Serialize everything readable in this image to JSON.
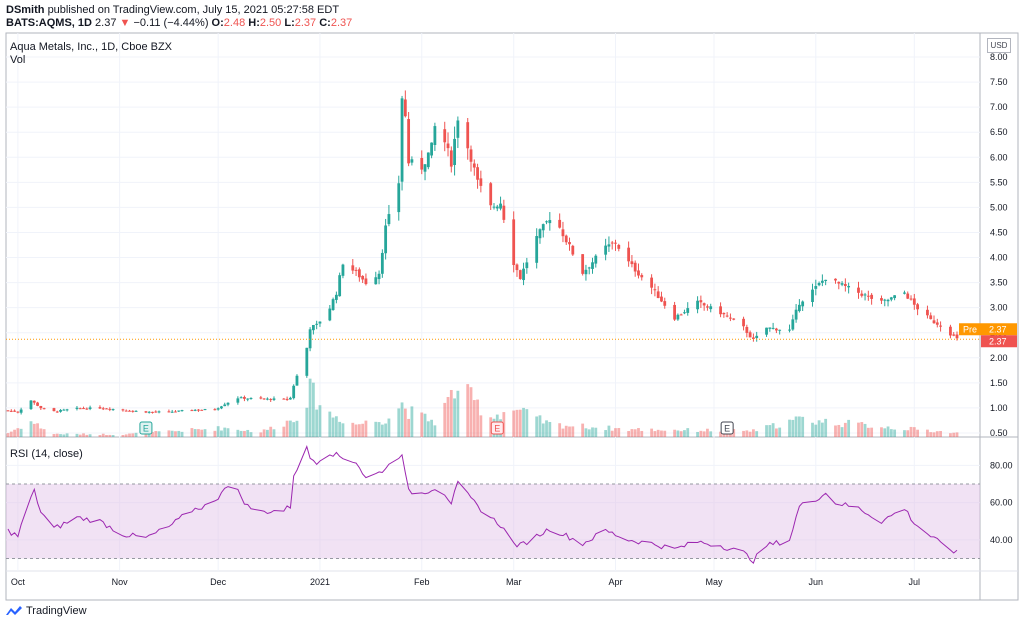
{
  "header": {
    "publisher": "DSmith",
    "published_line": "published on TradingView.com, July 15, 2021 05:27:58 EDT",
    "symbol": "BATS:AQMS, 1D",
    "last": "2.37",
    "change_arrow": "▼",
    "change": "−0.11 (−4.44%)",
    "o_label": "O:",
    "o": "2.48",
    "h_label": "H:",
    "h": "2.50",
    "l_label": "L:",
    "l": "2.37",
    "c_label": "C:",
    "c": "2.37"
  },
  "legend": {
    "title": "Aqua Metals, Inc., 1D, Cboe BZX",
    "vol": "Vol",
    "rsi": "RSI (14, close)"
  },
  "currency": "USD",
  "price_tags": {
    "pre_label": "Pre",
    "pre_value": "2.37",
    "last_value": "2.37"
  },
  "footer": {
    "brand": "TradingView"
  },
  "colors": {
    "up": "#26a69a",
    "down": "#ef5350",
    "rsi_line": "#9c27b0",
    "rsi_band": "#e1bee7",
    "pre_tag": "#ff9800"
  },
  "earnings_markers": [
    "E",
    "E",
    "E"
  ],
  "chart_data": [
    {
      "type": "candlestick",
      "title": "Aqua Metals, Inc., 1D, Cboe BZX",
      "x_ticks": [
        "Oct",
        "Nov",
        "Dec",
        "2021",
        "Feb",
        "Mar",
        "Apr",
        "May",
        "Jun",
        "Jul"
      ],
      "y_ticks": [
        "0.50",
        "1.00",
        "1.50",
        "2.00",
        "2.50",
        "3.00",
        "3.50",
        "4.00",
        "4.50",
        "5.00",
        "5.50",
        "6.00",
        "6.50",
        "7.00",
        "7.50",
        "8.00"
      ],
      "ylim": [
        0.45,
        8.2
      ],
      "x_range": [
        "2020-09-28",
        "2021-07-14"
      ],
      "price_path": [
        [
          "2020-09-28",
          0.95
        ],
        [
          "2020-10-01",
          0.92
        ],
        [
          "2020-10-05",
          1.15
        ],
        [
          "2020-10-06",
          1.1
        ],
        [
          "2020-10-08",
          1.0
        ],
        [
          "2020-10-12",
          0.93
        ],
        [
          "2020-10-19",
          0.99
        ],
        [
          "2020-10-26",
          1.0
        ],
        [
          "2020-11-02",
          0.96
        ],
        [
          "2020-11-09",
          0.92
        ],
        [
          "2020-11-16",
          0.92
        ],
        [
          "2020-11-23",
          0.96
        ],
        [
          "2020-11-30",
          0.97
        ],
        [
          "2020-12-03",
          1.08
        ],
        [
          "2020-12-07",
          1.2
        ],
        [
          "2020-12-14",
          1.18
        ],
        [
          "2020-12-21",
          1.17
        ],
        [
          "2020-12-23",
          1.2
        ],
        [
          "2020-12-24",
          1.45
        ],
        [
          "2020-12-28",
          2.2
        ],
        [
          "2020-12-29",
          2.6
        ],
        [
          "2020-12-31",
          2.65
        ],
        [
          "2021-01-04",
          3.0
        ],
        [
          "2021-01-06",
          3.3
        ],
        [
          "2021-01-08",
          3.9
        ],
        [
          "2021-01-12",
          3.7
        ],
        [
          "2021-01-15",
          3.5
        ],
        [
          "2021-01-19",
          3.7
        ],
        [
          "2021-01-21",
          4.6
        ],
        [
          "2021-01-22",
          4.8
        ],
        [
          "2021-01-25",
          5.5
        ],
        [
          "2021-01-26",
          7.2
        ],
        [
          "2021-01-27",
          6.8
        ],
        [
          "2021-01-28",
          5.9
        ],
        [
          "2021-02-01",
          5.8
        ],
        [
          "2021-02-04",
          6.2
        ],
        [
          "2021-02-05",
          6.6
        ],
        [
          "2021-02-08",
          6.3
        ],
        [
          "2021-02-10",
          5.9
        ],
        [
          "2021-02-12",
          6.8
        ],
        [
          "2021-02-16",
          6.0
        ],
        [
          "2021-02-18",
          5.5
        ],
        [
          "2021-02-22",
          5.0
        ],
        [
          "2021-02-25",
          5.1
        ],
        [
          "2021-03-01",
          3.9
        ],
        [
          "2021-03-03",
          3.6
        ],
        [
          "2021-03-08",
          4.4
        ],
        [
          "2021-03-12",
          4.8
        ],
        [
          "2021-03-15",
          4.6
        ],
        [
          "2021-03-22",
          3.7
        ],
        [
          "2021-03-29",
          4.2
        ],
        [
          "2021-04-01",
          4.3
        ],
        [
          "2021-04-05",
          3.9
        ],
        [
          "2021-04-12",
          3.4
        ],
        [
          "2021-04-19",
          2.8
        ],
        [
          "2021-04-26",
          3.1
        ],
        [
          "2021-05-03",
          2.9
        ],
        [
          "2021-05-10",
          2.6
        ],
        [
          "2021-05-13",
          2.35
        ],
        [
          "2021-05-17",
          2.6
        ],
        [
          "2021-05-24",
          2.55
        ],
        [
          "2021-05-27",
          3.1
        ],
        [
          "2021-06-01",
          3.4
        ],
        [
          "2021-06-04",
          3.6
        ],
        [
          "2021-06-07",
          3.5
        ],
        [
          "2021-06-14",
          3.3
        ],
        [
          "2021-06-21",
          3.1
        ],
        [
          "2021-06-28",
          3.3
        ],
        [
          "2021-07-01",
          3.05
        ],
        [
          "2021-07-06",
          2.75
        ],
        [
          "2021-07-09",
          2.65
        ],
        [
          "2021-07-14",
          2.37
        ]
      ],
      "last_price": 2.37
    },
    {
      "type": "bar",
      "series": [
        {
          "name": "Vol",
          "values_relative": [
            [
              "2020-09-28",
              0.08
            ],
            [
              "2020-10-05",
              0.3
            ],
            [
              "2020-10-12",
              0.06
            ],
            [
              "2020-11-02",
              0.05
            ],
            [
              "2020-12-03",
              0.18
            ],
            [
              "2020-12-14",
              0.1
            ],
            [
              "2020-12-24",
              0.35
            ],
            [
              "2020-12-28",
              0.75
            ],
            [
              "2020-12-29",
              0.9
            ],
            [
              "2021-01-04",
              0.45
            ],
            [
              "2021-01-12",
              0.25
            ],
            [
              "2021-01-21",
              0.35
            ],
            [
              "2021-01-26",
              0.65
            ],
            [
              "2021-01-28",
              0.5
            ],
            [
              "2021-02-05",
              0.3
            ],
            [
              "2021-02-12",
              1.0
            ],
            [
              "2021-02-22",
              0.4
            ],
            [
              "2021-03-01",
              0.55
            ],
            [
              "2021-03-12",
              0.25
            ],
            [
              "2021-04-05",
              0.15
            ],
            [
              "2021-05-13",
              0.12
            ],
            [
              "2021-05-27",
              0.35
            ],
            [
              "2021-06-04",
              0.3
            ],
            [
              "2021-07-14",
              0.08
            ]
          ]
        }
      ]
    },
    {
      "type": "line",
      "title": "RSI (14, close)",
      "y_ticks": [
        "40.00",
        "60.00",
        "80.00"
      ],
      "ylim": [
        26,
        92
      ],
      "band": [
        30,
        70
      ],
      "series": [
        {
          "name": "RSI (14, close)",
          "values": [
            [
              "2020-09-28",
              45
            ],
            [
              "2020-10-01",
              42
            ],
            [
              "2020-10-05",
              63
            ],
            [
              "2020-10-06",
              66
            ],
            [
              "2020-10-08",
              55
            ],
            [
              "2020-10-12",
              46
            ],
            [
              "2020-10-19",
              52
            ],
            [
              "2020-10-26",
              50
            ],
            [
              "2020-11-02",
              43
            ],
            [
              "2020-11-09",
              41
            ],
            [
              "2020-11-16",
              47
            ],
            [
              "2020-11-23",
              56
            ],
            [
              "2020-11-30",
              60
            ],
            [
              "2020-12-03",
              69
            ],
            [
              "2020-12-07",
              66
            ],
            [
              "2020-12-10",
              58
            ],
            [
              "2020-12-14",
              55
            ],
            [
              "2020-12-21",
              56
            ],
            [
              "2020-12-23",
              58
            ],
            [
              "2020-12-24",
              75
            ],
            [
              "2020-12-28",
              89
            ],
            [
              "2020-12-29",
              84
            ],
            [
              "2020-12-31",
              82
            ],
            [
              "2021-01-04",
              87
            ],
            [
              "2021-01-08",
              84
            ],
            [
              "2021-01-12",
              82
            ],
            [
              "2021-01-15",
              73
            ],
            [
              "2021-01-19",
              76
            ],
            [
              "2021-01-22",
              80
            ],
            [
              "2021-01-25",
              85
            ],
            [
              "2021-01-26",
              87
            ],
            [
              "2021-01-27",
              75
            ],
            [
              "2021-01-28",
              66
            ],
            [
              "2021-02-01",
              65
            ],
            [
              "2021-02-05",
              68
            ],
            [
              "2021-02-08",
              65
            ],
            [
              "2021-02-10",
              60
            ],
            [
              "2021-02-12",
              70
            ],
            [
              "2021-02-16",
              62
            ],
            [
              "2021-02-18",
              58
            ],
            [
              "2021-02-22",
              52
            ],
            [
              "2021-02-25",
              48
            ],
            [
              "2021-03-01",
              38
            ],
            [
              "2021-03-03",
              37
            ],
            [
              "2021-03-08",
              42
            ],
            [
              "2021-03-12",
              46
            ],
            [
              "2021-03-15",
              44
            ],
            [
              "2021-03-22",
              38
            ],
            [
              "2021-03-29",
              45
            ],
            [
              "2021-04-05",
              40
            ],
            [
              "2021-04-12",
              38
            ],
            [
              "2021-04-19",
              35
            ],
            [
              "2021-04-26",
              39
            ],
            [
              "2021-05-03",
              37
            ],
            [
              "2021-05-10",
              33
            ],
            [
              "2021-05-13",
              29
            ],
            [
              "2021-05-17",
              37
            ],
            [
              "2021-05-24",
              40
            ],
            [
              "2021-05-27",
              58
            ],
            [
              "2021-06-01",
              62
            ],
            [
              "2021-06-04",
              65
            ],
            [
              "2021-06-07",
              60
            ],
            [
              "2021-06-14",
              57
            ],
            [
              "2021-06-21",
              50
            ],
            [
              "2021-06-28",
              57
            ],
            [
              "2021-07-01",
              49
            ],
            [
              "2021-07-06",
              42
            ],
            [
              "2021-07-09",
              38
            ],
            [
              "2021-07-14",
              33
            ]
          ]
        }
      ]
    }
  ]
}
